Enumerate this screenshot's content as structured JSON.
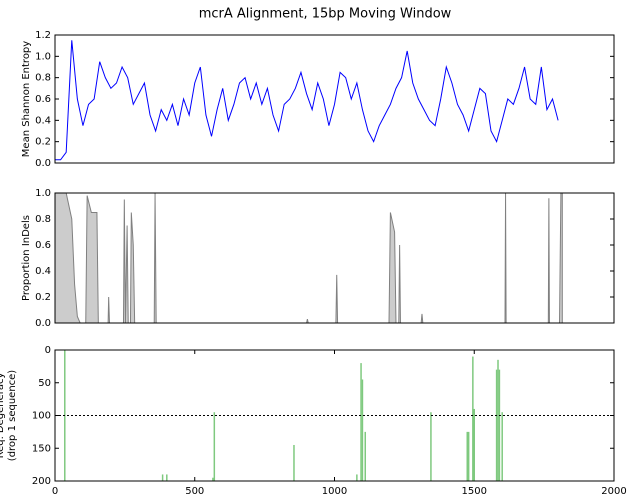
{
  "title": "mcrA Alignment, 15bp Moving Window",
  "chart_data": [
    {
      "type": "line",
      "ylabel": "Mean Shannon Entropy",
      "color": "#0000ff",
      "xlim": [
        0,
        2000
      ],
      "ylim": [
        0,
        1.2
      ],
      "yticks": [
        {
          "value": 0,
          "label": "0.0"
        },
        0.2,
        0.4,
        0.6,
        0.8,
        {
          "value": 1,
          "label": "1.0"
        },
        1.2
      ],
      "x": [
        0,
        20,
        40,
        60,
        80,
        100,
        120,
        140,
        160,
        180,
        200,
        220,
        240,
        260,
        280,
        300,
        320,
        340,
        360,
        380,
        400,
        420,
        440,
        460,
        480,
        500,
        520,
        540,
        560,
        580,
        600,
        620,
        640,
        660,
        680,
        700,
        720,
        740,
        760,
        780,
        800,
        820,
        840,
        860,
        880,
        900,
        920,
        940,
        960,
        980,
        1000,
        1020,
        1040,
        1060,
        1080,
        1100,
        1120,
        1140,
        1160,
        1180,
        1200,
        1220,
        1240,
        1260,
        1280,
        1300,
        1320,
        1340,
        1360,
        1380,
        1400,
        1420,
        1440,
        1460,
        1480,
        1500,
        1520,
        1540,
        1560,
        1580,
        1600,
        1620,
        1640,
        1660,
        1680,
        1700,
        1720,
        1740,
        1760,
        1780,
        1800
      ],
      "values": [
        0.03,
        0.03,
        0.1,
        1.15,
        0.6,
        0.35,
        0.55,
        0.6,
        0.95,
        0.8,
        0.7,
        0.75,
        0.9,
        0.8,
        0.55,
        0.65,
        0.75,
        0.45,
        0.3,
        0.5,
        0.4,
        0.55,
        0.35,
        0.6,
        0.45,
        0.75,
        0.9,
        0.45,
        0.25,
        0.5,
        0.7,
        0.4,
        0.55,
        0.75,
        0.8,
        0.6,
        0.75,
        0.55,
        0.7,
        0.45,
        0.3,
        0.55,
        0.6,
        0.7,
        0.85,
        0.65,
        0.5,
        0.75,
        0.6,
        0.35,
        0.55,
        0.85,
        0.8,
        0.6,
        0.75,
        0.5,
        0.3,
        0.2,
        0.35,
        0.45,
        0.55,
        0.7,
        0.8,
        1.05,
        0.75,
        0.6,
        0.5,
        0.4,
        0.35,
        0.6,
        0.9,
        0.75,
        0.55,
        0.45,
        0.3,
        0.5,
        0.7,
        0.65,
        0.3,
        0.2,
        0.4,
        0.6,
        0.55,
        0.7,
        0.9,
        0.6,
        0.55,
        0.9,
        0.5,
        0.6,
        0.4
      ]
    },
    {
      "type": "area",
      "ylabel": "Proportion InDels",
      "color": "#cccccc",
      "line_color": "#808080",
      "xlim": [
        0,
        2000
      ],
      "ylim": [
        0,
        1
      ],
      "yticks": [
        {
          "value": 0,
          "label": "0.0"
        },
        0.2,
        0.4,
        0.6,
        0.8,
        {
          "value": 1,
          "label": "1.0"
        }
      ],
      "x": [
        0,
        40,
        60,
        70,
        80,
        90,
        110,
        115,
        130,
        150,
        155,
        190,
        192,
        195,
        245,
        248,
        252,
        258,
        262,
        270,
        273,
        280,
        285,
        355,
        358,
        362,
        900,
        903,
        906,
        1005,
        1008,
        1011,
        1195,
        1200,
        1215,
        1220,
        1230,
        1233,
        1236,
        1310,
        1313,
        1316,
        1610,
        1612,
        1614,
        1765,
        1767,
        1769,
        1805,
        1810,
        1815
      ],
      "values": [
        1,
        1,
        0.8,
        0.3,
        0.05,
        0,
        0,
        0.98,
        0.85,
        0.85,
        0,
        0,
        0.2,
        0,
        0,
        0.95,
        0,
        0.75,
        0,
        0,
        0.85,
        0.6,
        0,
        0,
        1,
        0,
        0,
        0.03,
        0,
        0,
        0.37,
        0,
        0,
        0.85,
        0.7,
        0,
        0,
        0.6,
        0,
        0,
        0.07,
        0,
        0,
        1,
        0,
        0,
        0.96,
        0,
        0,
        1,
        1
      ]
    },
    {
      "type": "spike",
      "ylabel": [
        "Req. Degeneracy",
        "(drop 1 sequence)"
      ],
      "color": "#7fc97f",
      "xlim": [
        0,
        2000
      ],
      "ylim": [
        200,
        0
      ],
      "hline": 100,
      "xticks": [
        0,
        500,
        1000,
        1500,
        2000
      ],
      "yticks": [
        0,
        50,
        100,
        150,
        200
      ],
      "x": [
        35,
        385,
        400,
        565,
        570,
        855,
        1080,
        1095,
        1100,
        1110,
        1345,
        1475,
        1480,
        1495,
        1500,
        1580,
        1585,
        1590,
        1600
      ],
      "values": [
        0,
        190,
        190,
        195,
        95,
        145,
        190,
        20,
        45,
        125,
        95,
        125,
        125,
        10,
        90,
        30,
        15,
        30,
        95
      ]
    }
  ]
}
